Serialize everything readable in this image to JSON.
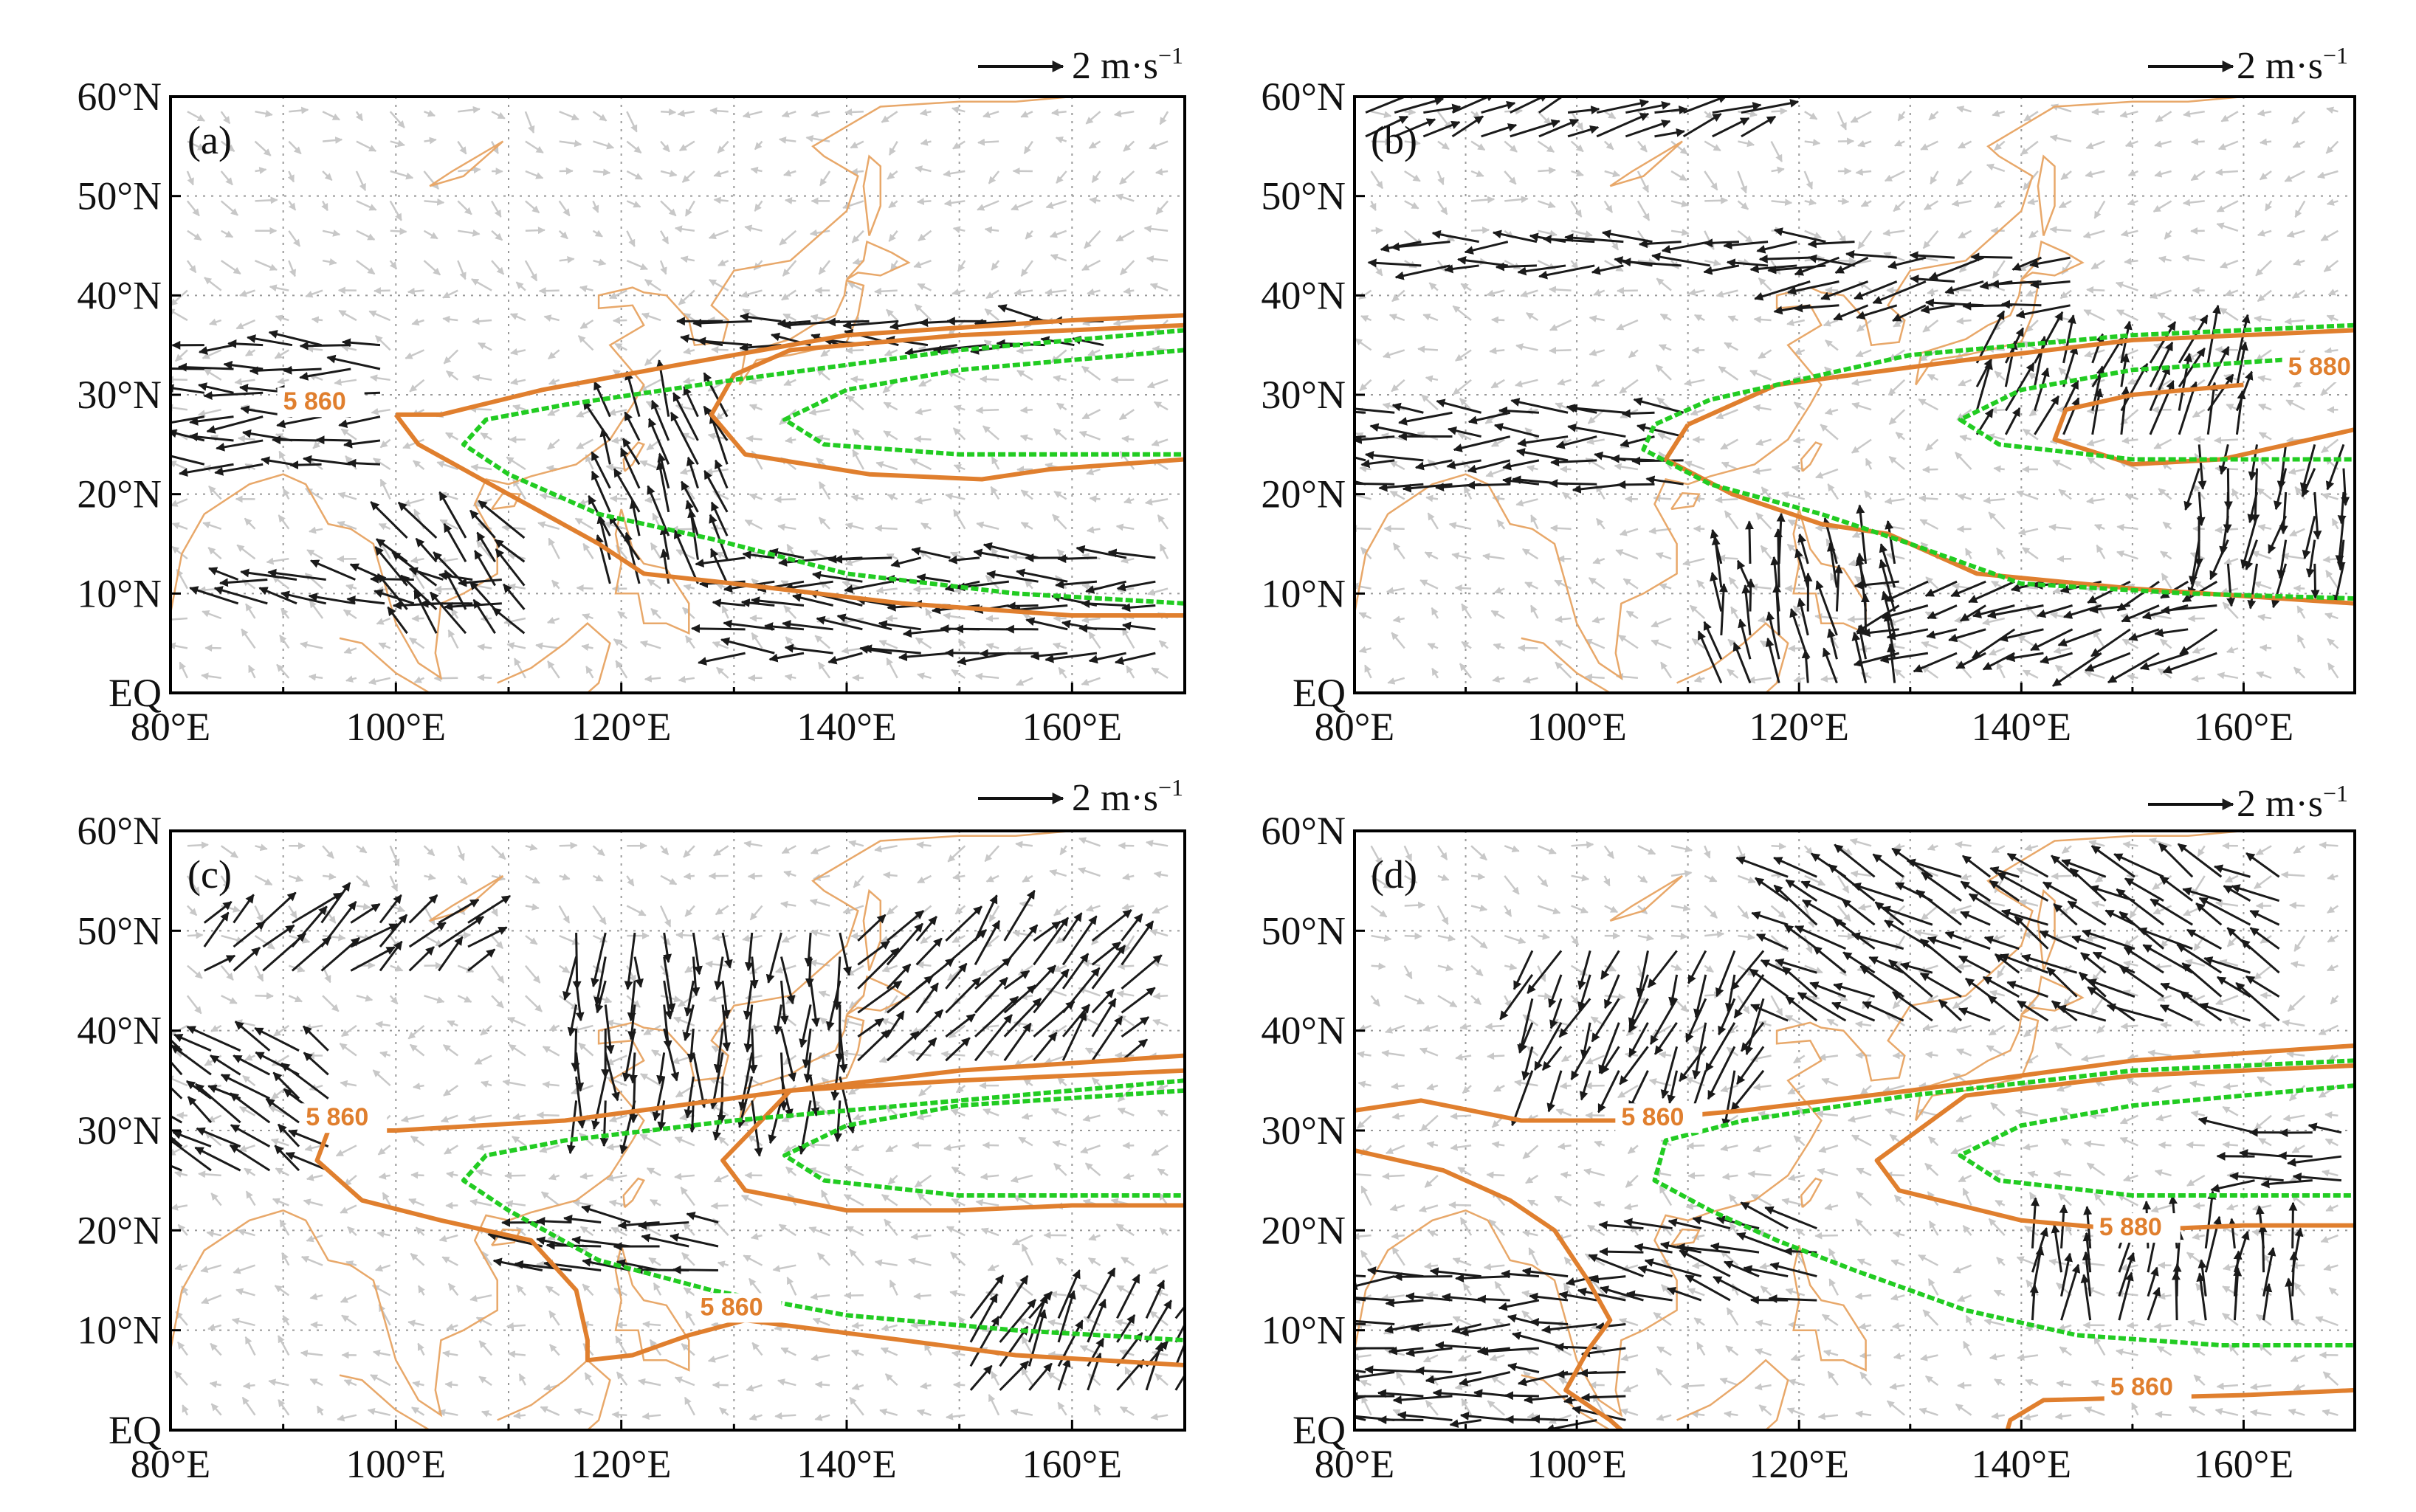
{
  "figure": {
    "x_ticks": [
      "80°E",
      "100°E",
      "120°E",
      "140°E",
      "160°E"
    ],
    "y_ticks": [
      "EQ",
      "10°N",
      "20°N",
      "30°N",
      "40°N",
      "50°N",
      "60°N"
    ],
    "reference_vector_label": "2 m·s",
    "reference_vector_exponent": "−1",
    "colors": {
      "coast": "#e8a86a",
      "contour_orange": "#e07f2e",
      "contour_green": "#22cc22",
      "strong_vector": "#1a1a1a",
      "weak_vector": "#c8c8c8",
      "grid": "#999999"
    },
    "panels": [
      {
        "label": "(a)",
        "contour_labels": [
          "5 860"
        ],
        "orange_contours": [
          [
            [
              100,
              28
            ],
            [
              104,
              28
            ],
            [
              113,
              30.5
            ],
            [
              125,
              33
            ],
            [
              140,
              36
            ],
            [
              160,
              37.5
            ],
            [
              170,
              38
            ]
          ],
          [
            [
              170,
              37
            ],
            [
              150,
              36
            ],
            [
              135,
              34.5
            ],
            [
              130,
              32
            ],
            [
              128,
              28
            ],
            [
              131,
              24
            ],
            [
              142,
              22
            ],
            [
              152,
              21.5
            ],
            [
              158,
              22.5
            ],
            [
              170,
              23.5
            ]
          ],
          [
            [
              100,
              28
            ],
            [
              102,
              25
            ],
            [
              110,
              20
            ],
            [
              118,
              15
            ],
            [
              122,
              12
            ],
            [
              130,
              11
            ],
            [
              145,
              9
            ],
            [
              160,
              7.8
            ],
            [
              170,
              7.8
            ]
          ]
        ],
        "green_contours": [
          [
            [
              170,
              36.5
            ],
            [
              150,
              34.5
            ],
            [
              130,
              31.5
            ],
            [
              115,
              29
            ],
            [
              108,
              27.5
            ],
            [
              106,
              25
            ],
            [
              110,
              22
            ],
            [
              118,
              18
            ],
            [
              128,
              15.5
            ],
            [
              140,
              12
            ],
            [
              155,
              10
            ],
            [
              170,
              9
            ]
          ],
          [
            [
              170,
              34.5
            ],
            [
              150,
              32.5
            ],
            [
              140,
              30.5
            ],
            [
              134.5,
              27.5
            ],
            [
              138,
              25
            ],
            [
              150,
              24
            ],
            [
              170,
              24
            ]
          ]
        ]
      },
      {
        "label": "(b)",
        "contour_labels": [
          "5 880"
        ],
        "orange_contours": [
          [
            [
              110,
              27
            ],
            [
              118,
              31
            ],
            [
              135,
              33.5
            ],
            [
              150,
              35.5
            ],
            [
              170,
              36.5
            ]
          ],
          [
            [
              110,
              27
            ],
            [
              108,
              23.5
            ],
            [
              114,
              20
            ],
            [
              122,
              17
            ],
            [
              128,
              16
            ],
            [
              136,
              12
            ],
            [
              150,
              10.5
            ],
            [
              170,
              9
            ]
          ],
          [
            [
              160,
              31
            ],
            [
              150,
              30
            ],
            [
              144,
              28.5
            ],
            [
              143,
              25.5
            ],
            [
              150,
              23
            ],
            [
              158,
              23.5
            ],
            [
              166,
              25.5
            ],
            [
              170,
              26.5
            ]
          ]
        ],
        "green_contours": [
          [
            [
              170,
              37
            ],
            [
              150,
              36
            ],
            [
              130,
              34
            ],
            [
              112,
              29.5
            ],
            [
              107,
              27
            ],
            [
              106,
              24.5
            ],
            [
              112,
              21
            ],
            [
              122,
              18
            ],
            [
              130,
              15
            ],
            [
              140,
              11
            ],
            [
              155,
              10
            ],
            [
              170,
              9.5
            ]
          ],
          [
            [
              170,
              34
            ],
            [
              150,
              32.5
            ],
            [
              140,
              30.5
            ],
            [
              134.5,
              27.5
            ],
            [
              138,
              25
            ],
            [
              150,
              23.5
            ],
            [
              170,
              23.5
            ]
          ]
        ]
      },
      {
        "label": "(c)",
        "contour_labels": [
          "5 860",
          "5 860"
        ],
        "orange_contours": [
          [
            [
              100,
              30
            ],
            [
              115,
              31
            ],
            [
              125,
              32.5
            ],
            [
              135,
              34
            ],
            [
              150,
              36
            ],
            [
              170,
              37.5
            ]
          ],
          [
            [
              100,
              30
            ],
            [
              94,
              30
            ],
            [
              93,
              27
            ],
            [
              97,
              23
            ],
            [
              104,
              21
            ],
            [
              112,
              19
            ],
            [
              116,
              14
            ],
            [
              117,
              9
            ],
            [
              117,
              7
            ],
            [
              121,
              7.5
            ],
            [
              126,
              9.5
            ],
            [
              131,
              11
            ],
            [
              145,
              9
            ],
            [
              155,
              7.5
            ],
            [
              170,
              6.5
            ]
          ],
          [
            [
              170,
              36
            ],
            [
              150,
              35
            ],
            [
              135,
              34
            ],
            [
              129,
              27
            ],
            [
              131,
              24
            ],
            [
              140,
              22
            ],
            [
              150,
              22
            ],
            [
              160,
              22.5
            ],
            [
              170,
              22.5
            ]
          ]
        ],
        "green_contours": [
          [
            [
              170,
              35
            ],
            [
              150,
              33
            ],
            [
              130,
              31
            ],
            [
              115,
              29
            ],
            [
              108,
              27.5
            ],
            [
              106,
              25
            ],
            [
              110,
              22
            ],
            [
              118,
              17
            ],
            [
              128,
              14
            ],
            [
              140,
              11.5
            ],
            [
              155,
              10
            ],
            [
              170,
              9
            ]
          ],
          [
            [
              170,
              34
            ],
            [
              150,
              32.5
            ],
            [
              140,
              30.5
            ],
            [
              134.5,
              27.5
            ],
            [
              138,
              25
            ],
            [
              150,
              23.5
            ],
            [
              170,
              23.5
            ]
          ]
        ]
      },
      {
        "label": "(d)",
        "contour_labels": [
          "5 860",
          "5 880",
          "5 860"
        ],
        "orange_contours": [
          [
            [
              80,
              32
            ],
            [
              86,
              33
            ],
            [
              95,
              31
            ],
            [
              105,
              31
            ],
            [
              115,
              32
            ],
            [
              130,
              34
            ],
            [
              150,
              37
            ],
            [
              170,
              38.5
            ]
          ],
          [
            [
              80,
              28
            ],
            [
              88,
              26
            ],
            [
              94,
              23
            ],
            [
              98,
              20
            ],
            [
              101,
              15
            ],
            [
              103,
              11
            ],
            [
              101,
              8
            ],
            [
              99,
              4
            ],
            [
              103,
              1
            ],
            [
              105,
              -1
            ]
          ],
          [
            [
              170,
              36.5
            ],
            [
              150,
              35.5
            ],
            [
              135,
              33.5
            ],
            [
              127,
              27
            ],
            [
              129,
              24
            ],
            [
              140,
              21
            ],
            [
              150,
              20
            ],
            [
              160,
              20.5
            ],
            [
              170,
              20.5
            ]
          ],
          [
            [
              138.5,
              -1
            ],
            [
              139,
              1
            ],
            [
              142,
              3
            ],
            [
              160,
              3.5
            ],
            [
              170,
              4
            ]
          ]
        ],
        "green_contours": [
          [
            [
              170,
              37
            ],
            [
              150,
              36
            ],
            [
              130,
              33.5
            ],
            [
              115,
              31
            ],
            [
              108,
              29
            ],
            [
              107,
              25
            ],
            [
              112,
              22
            ],
            [
              118,
              19
            ],
            [
              125,
              16
            ],
            [
              135,
              12
            ],
            [
              145,
              9.5
            ],
            [
              158,
              8.5
            ],
            [
              170,
              8.5
            ]
          ],
          [
            [
              170,
              34.5
            ],
            [
              150,
              32.5
            ],
            [
              140,
              30.5
            ],
            [
              134.5,
              27.5
            ],
            [
              138,
              25
            ],
            [
              150,
              23.5
            ],
            [
              170,
              23.5
            ]
          ]
        ]
      }
    ]
  }
}
